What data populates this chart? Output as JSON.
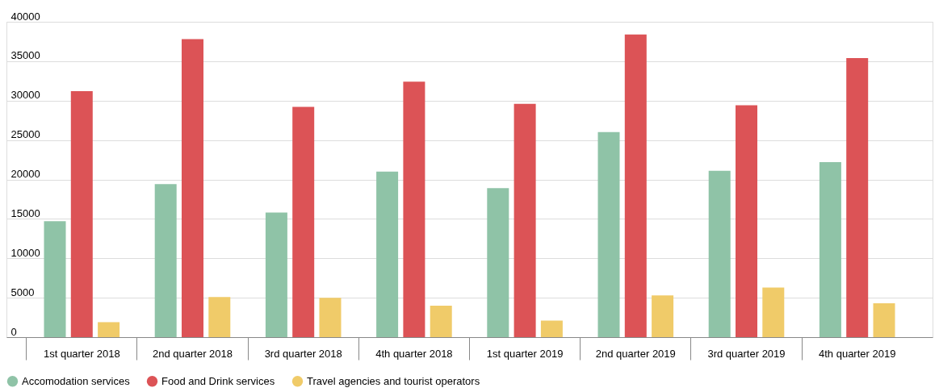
{
  "chart_data": {
    "type": "bar",
    "categories": [
      "1st quarter 2018",
      "2nd quarter 2018",
      "3rd quarter 2018",
      "4th quarter 2018",
      "1st quarter 2019",
      "2nd quarter 2019",
      "3rd quarter 2019",
      "4th quarter 2019"
    ],
    "series": [
      {
        "name": "Accomodation services",
        "color": "#8fc3a7",
        "values": [
          14700,
          19400,
          15800,
          21000,
          18900,
          26000,
          21100,
          22200
        ]
      },
      {
        "name": "Food and Drink services",
        "color": "#dc5356",
        "values": [
          31200,
          37800,
          29200,
          32400,
          29600,
          38400,
          29400,
          35400
        ]
      },
      {
        "name": "Travel agencies and tourist operators",
        "color": "#f0cb69",
        "values": [
          1900,
          5100,
          5000,
          4000,
          2100,
          5300,
          6300,
          4300
        ]
      }
    ],
    "ylim": [
      0,
      40000
    ],
    "yticks": [
      0,
      5000,
      10000,
      15000,
      20000,
      25000,
      30000,
      35000,
      40000
    ],
    "grid": "y",
    "legend": "bottom",
    "marker": "circle"
  }
}
